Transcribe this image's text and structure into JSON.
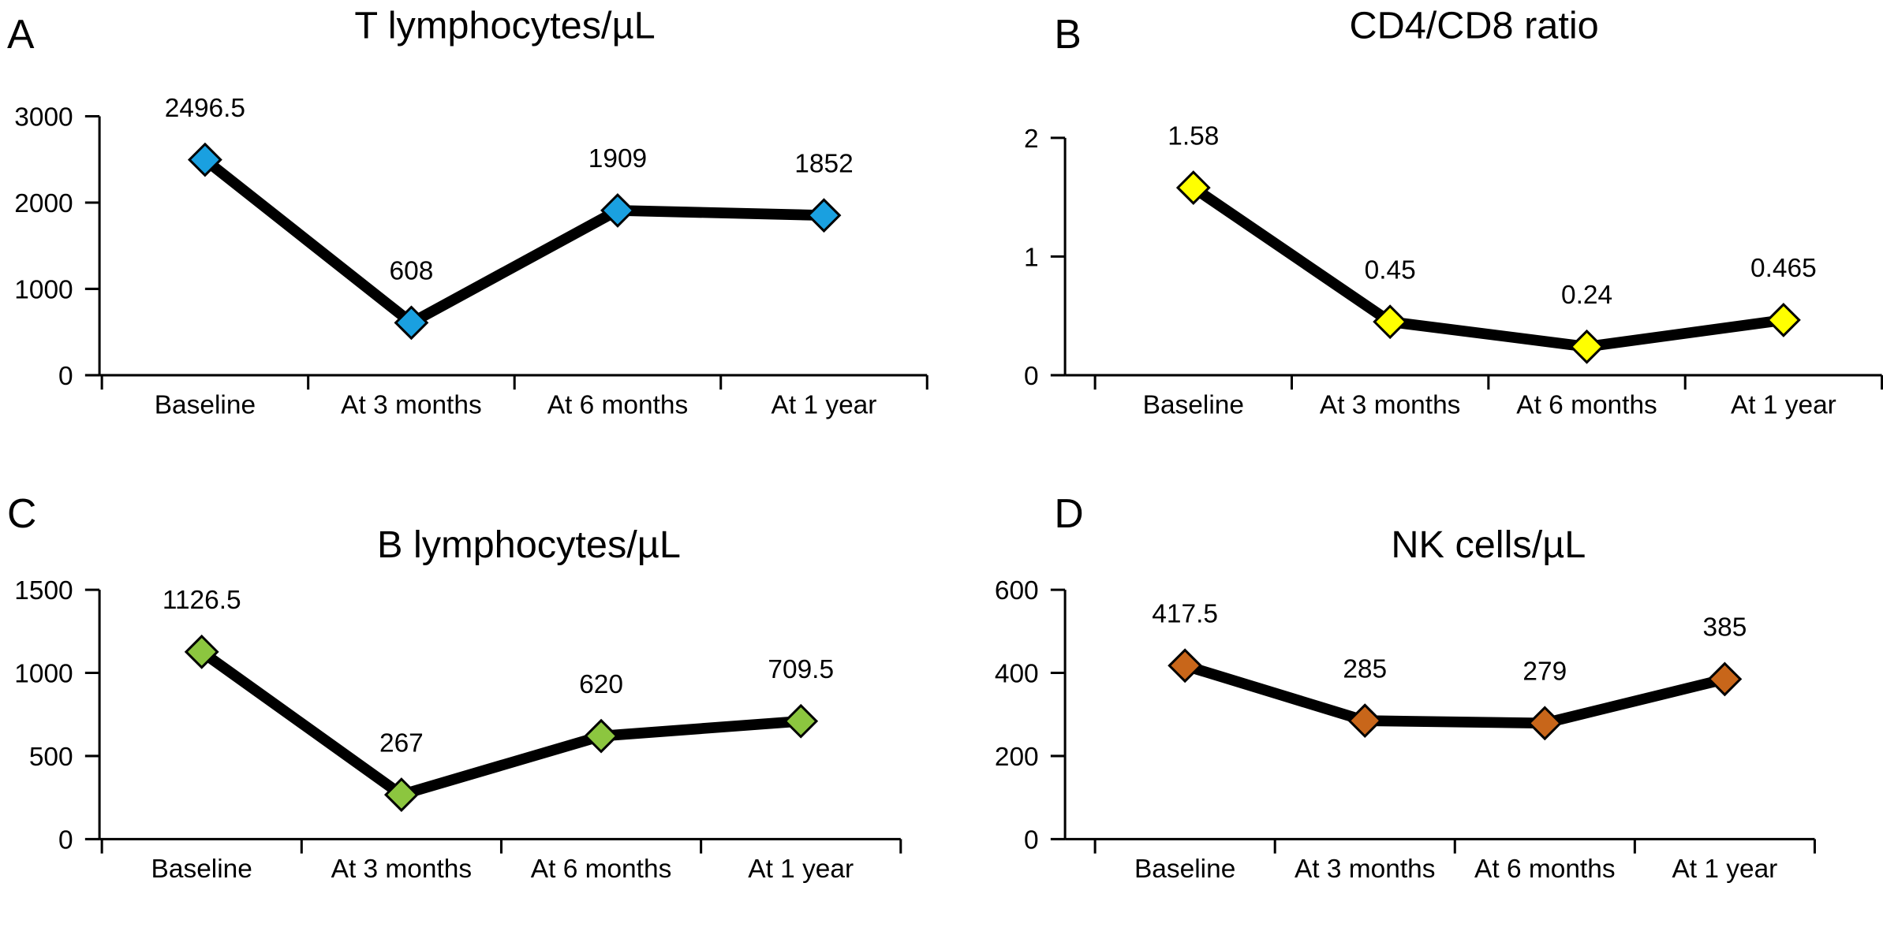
{
  "chart_data": [
    {
      "type": "line",
      "panel": "A",
      "title": "T lymphocytes/µL",
      "categories": [
        "Baseline",
        "At 3 months",
        "At 6 months",
        "At 1 year"
      ],
      "values": [
        2496.5,
        608,
        1909,
        1852
      ],
      "color": "#1aa0e0",
      "ylim": [
        0,
        3000
      ],
      "yticks": [
        0,
        1000,
        2000,
        3000
      ]
    },
    {
      "type": "line",
      "panel": "B",
      "title": "CD4/CD8 ratio",
      "categories": [
        "Baseline",
        "At 3 months",
        "At 6 months",
        "At 1 year"
      ],
      "values": [
        1.58,
        0.45,
        0.24,
        0.465
      ],
      "color": "#ffff00",
      "ylim": [
        0,
        2
      ],
      "yticks": [
        0,
        1,
        2
      ]
    },
    {
      "type": "line",
      "panel": "C",
      "title": "B lymphocytes/µL",
      "categories": [
        "Baseline",
        "At 3 months",
        "At 6 months",
        "At 1 year"
      ],
      "values": [
        1126.5,
        267,
        620,
        709.5
      ],
      "color": "#8cc63f",
      "ylim": [
        0,
        1500
      ],
      "yticks": [
        0,
        500,
        1000,
        1500
      ]
    },
    {
      "type": "line",
      "panel": "D",
      "title": "NK cells/µL",
      "categories": [
        "Baseline",
        "At 3 months",
        "At 6 months",
        "At 1 year"
      ],
      "values": [
        417.5,
        285,
        279,
        385
      ],
      "color": "#c8661a",
      "ylim": [
        0,
        600
      ],
      "yticks": [
        0,
        200,
        400,
        600
      ]
    }
  ]
}
